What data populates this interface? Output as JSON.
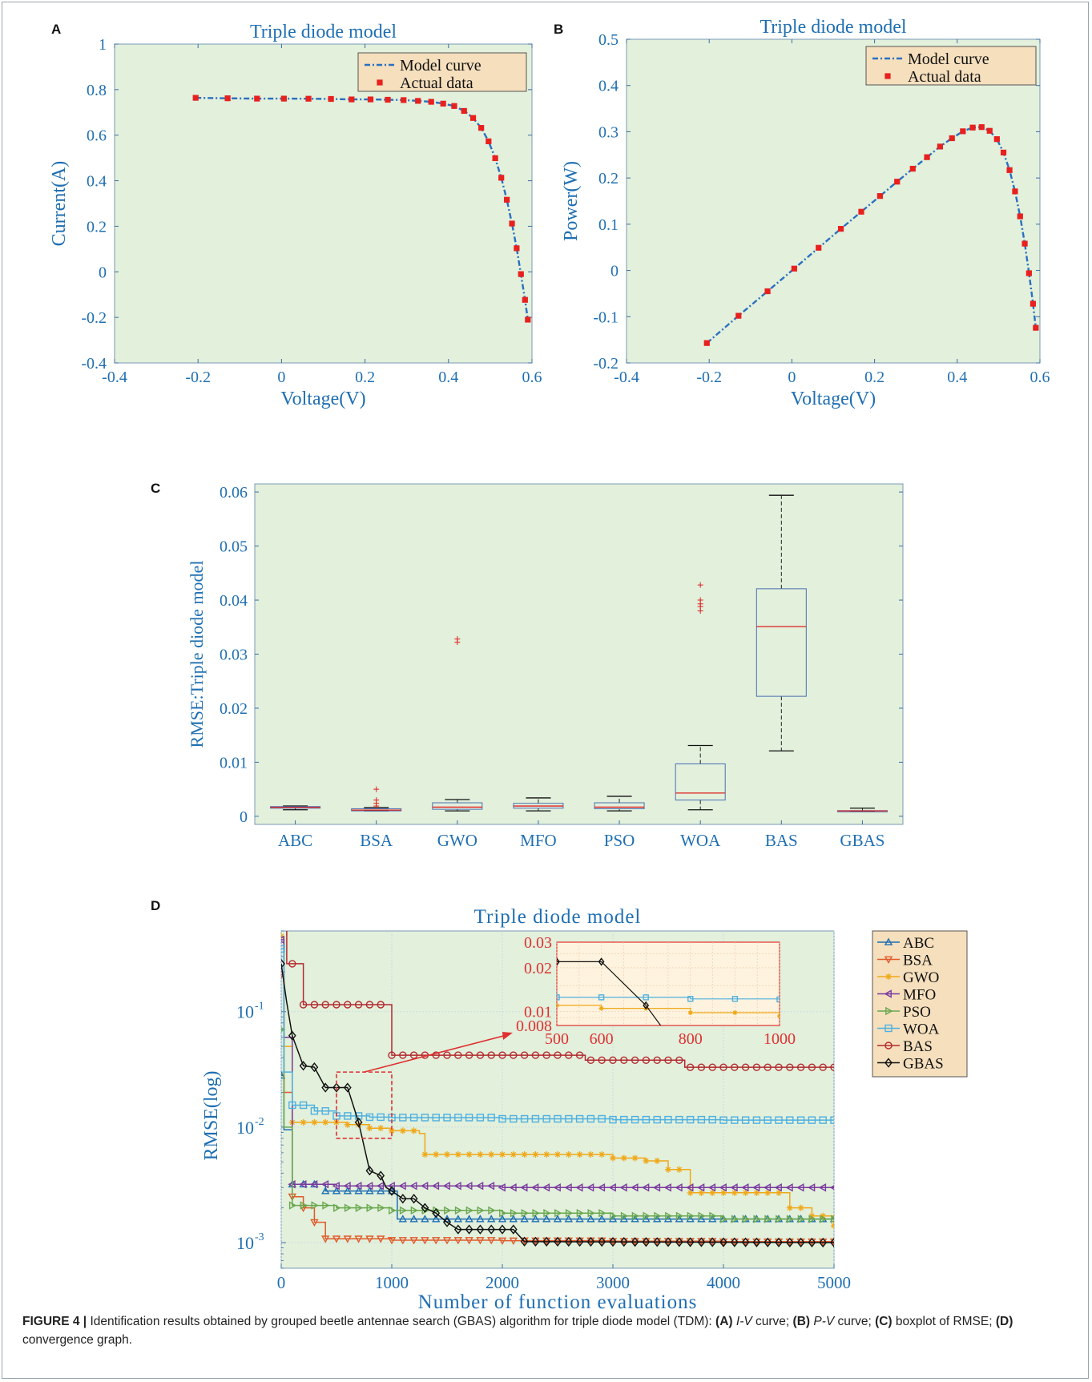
{
  "caption": {
    "label": "FIGURE 4 |",
    "text_1": "Identification results obtained by grouped beetle antennae search (GBAS) algorithm for triple diode model (TDM):",
    "a": "(A)",
    "a_text": "I-V",
    "a_rest": "curve;",
    "b": "(B)",
    "b_text": "P-V",
    "b_rest": "curve;",
    "c": "(C)",
    "c_text": "boxplot of RMSE;",
    "d": "(D)",
    "d_text": "convergence graph."
  },
  "colors": {
    "plot_bg": "#e2f0dc",
    "axis_text": "#1f6fb2",
    "model_line": "#2a6fc0",
    "actual_marker": "#e8201e",
    "legend_bg": "#f5dfbd",
    "inset_bg": "#fdf3de",
    "inset_border": "#e03030"
  },
  "chart_data": [
    {
      "id": "A",
      "panel_label": "A",
      "type": "line",
      "title": "Triple diode model",
      "xlabel": "Voltage(V)",
      "ylabel": "Current(A)",
      "xlim": [
        -0.4,
        0.6
      ],
      "ylim": [
        -0.4,
        1
      ],
      "xticks": [
        -0.4,
        -0.2,
        0,
        0.2,
        0.4,
        0.6
      ],
      "xtick_labels": [
        "-0.4",
        "-0.2",
        "0",
        "0.2",
        "0.4",
        "0.6"
      ],
      "yticks": [
        -0.4,
        -0.2,
        0,
        0.2,
        0.4,
        0.6,
        0.8,
        1
      ],
      "ytick_labels": [
        "-0.4",
        "-0.2",
        "0",
        "0.2",
        "0.4",
        "0.6",
        "0.8",
        "1"
      ],
      "legend_position": "top-right",
      "legend": [
        "Model curve",
        "Actual data"
      ],
      "x": [
        -0.2057,
        -0.1291,
        -0.0588,
        0.0057,
        0.0646,
        0.1185,
        0.1678,
        0.2132,
        0.2545,
        0.2924,
        0.3269,
        0.3585,
        0.3873,
        0.4137,
        0.4373,
        0.459,
        0.4784,
        0.496,
        0.5119,
        0.5265,
        0.5398,
        0.5521,
        0.5633,
        0.5736,
        0.5833,
        0.59
      ],
      "y": [
        0.764,
        0.762,
        0.7605,
        0.7605,
        0.76,
        0.759,
        0.757,
        0.757,
        0.7555,
        0.754,
        0.7505,
        0.7465,
        0.7385,
        0.728,
        0.7065,
        0.6755,
        0.632,
        0.573,
        0.499,
        0.413,
        0.3165,
        0.212,
        0.1035,
        -0.01,
        -0.123,
        -0.21
      ]
    },
    {
      "id": "B",
      "panel_label": "B",
      "type": "line",
      "title": "Triple diode model",
      "xlabel": "Voltage(V)",
      "ylabel": "Power(W)",
      "xlim": [
        -0.4,
        0.6
      ],
      "ylim": [
        -0.2,
        0.5
      ],
      "xticks": [
        -0.4,
        -0.2,
        0,
        0.2,
        0.4,
        0.6
      ],
      "xtick_labels": [
        "-0.4",
        "-0.2",
        "0",
        "0.2",
        "0.4",
        "0.6"
      ],
      "yticks": [
        -0.2,
        -0.1,
        0,
        0.1,
        0.2,
        0.3,
        0.4,
        0.5
      ],
      "ytick_labels": [
        "-0.2",
        "-0.1",
        "0",
        "0.1",
        "0.2",
        "0.3",
        "0.4",
        "0.5"
      ],
      "legend_position": "top-right",
      "legend": [
        "Model curve",
        "Actual data"
      ],
      "x": [
        -0.2057,
        -0.1291,
        -0.0588,
        0.0057,
        0.0646,
        0.1185,
        0.1678,
        0.2132,
        0.2545,
        0.2924,
        0.3269,
        0.3585,
        0.3873,
        0.4137,
        0.4373,
        0.459,
        0.4784,
        0.496,
        0.5119,
        0.5265,
        0.5398,
        0.5521,
        0.5633,
        0.5736,
        0.5833,
        0.59
      ],
      "y": [
        -0.157,
        -0.098,
        -0.045,
        0.004,
        0.049,
        0.09,
        0.127,
        0.161,
        0.192,
        0.22,
        0.245,
        0.268,
        0.286,
        0.301,
        0.309,
        0.31,
        0.302,
        0.284,
        0.255,
        0.217,
        0.171,
        0.117,
        0.058,
        -0.006,
        -0.072,
        -0.124
      ]
    },
    {
      "id": "C",
      "panel_label": "C",
      "type": "box",
      "ylabel": "RMSE:Triple diode model",
      "ylim": [
        -0.0015,
        0.0615
      ],
      "yticks": [
        0,
        0.01,
        0.02,
        0.03,
        0.04,
        0.05,
        0.06
      ],
      "ytick_labels": [
        "0",
        "0.01",
        "0.02",
        "0.03",
        "0.04",
        "0.05",
        "0.06"
      ],
      "categories": [
        "ABC",
        "BSA",
        "GWO",
        "MFO",
        "PSO",
        "WOA",
        "BAS",
        "GBAS"
      ],
      "boxes": [
        {
          "name": "ABC",
          "whisker_low": 0.0012,
          "q1": 0.0015,
          "median": 0.00165,
          "q3": 0.0018,
          "whisker_high": 0.0019,
          "outliers": []
        },
        {
          "name": "BSA",
          "whisker_low": 0.001,
          "q1": 0.001,
          "median": 0.00115,
          "q3": 0.0014,
          "whisker_high": 0.0016,
          "outliers": [
            0.0019,
            0.0024,
            0.003,
            0.005
          ]
        },
        {
          "name": "GWO",
          "whisker_low": 0.001,
          "q1": 0.0013,
          "median": 0.0017,
          "q3": 0.0025,
          "whisker_high": 0.0031,
          "outliers": [
            0.0322,
            0.0328
          ]
        },
        {
          "name": "MFO",
          "whisker_low": 0.001,
          "q1": 0.0015,
          "median": 0.0019,
          "q3": 0.0024,
          "whisker_high": 0.0034,
          "outliers": []
        },
        {
          "name": "PSO",
          "whisker_low": 0.001,
          "q1": 0.0014,
          "median": 0.0017,
          "q3": 0.0025,
          "whisker_high": 0.0037,
          "outliers": []
        },
        {
          "name": "WOA",
          "whisker_low": 0.0012,
          "q1": 0.003,
          "median": 0.0043,
          "q3": 0.0097,
          "whisker_high": 0.0131,
          "outliers": [
            0.038,
            0.0388,
            0.0393,
            0.04,
            0.0428
          ]
        },
        {
          "name": "BAS",
          "whisker_low": 0.0121,
          "q1": 0.0222,
          "median": 0.0351,
          "q3": 0.0421,
          "whisker_high": 0.0594,
          "outliers": []
        },
        {
          "name": "GBAS",
          "whisker_low": 0.00095,
          "q1": 0.00098,
          "median": 0.001,
          "q3": 0.00105,
          "whisker_high": 0.0015,
          "outliers": []
        }
      ]
    },
    {
      "id": "D",
      "panel_label": "D",
      "type": "line",
      "title": "Triple diode model",
      "xlabel": "Number of function evaluations",
      "ylabel": "RMSE(log)",
      "yscale": "log",
      "xlim": [
        0,
        5000
      ],
      "ylim": [
        0.0006,
        0.5
      ],
      "xticks": [
        0,
        1000,
        2000,
        3000,
        4000,
        5000
      ],
      "xtick_labels": [
        "0",
        "1000",
        "2000",
        "3000",
        "4000",
        "5000"
      ],
      "yticks": [
        0.001,
        0.01,
        0.1
      ],
      "ytick_labels": [
        {
          "base": "10",
          "exp": "-3"
        },
        {
          "base": "10",
          "exp": "-2"
        },
        {
          "base": "10",
          "exp": "-1"
        }
      ],
      "legend_position": "outside-right",
      "series": [
        {
          "name": "ABC",
          "color": "#1f6fb2",
          "marker": "triangle-up",
          "x": [
            0,
            25,
            100,
            400,
            1000,
            1050,
            5000
          ],
          "y": [
            0.028,
            0.0095,
            0.0032,
            0.0028,
            0.0028,
            0.0016,
            0.0016
          ]
        },
        {
          "name": "BSA",
          "color": "#e05a2a",
          "marker": "triangle-down",
          "x": [
            0,
            25,
            100,
            200,
            300,
            400,
            1000,
            2000,
            3000,
            4000,
            5000
          ],
          "y": [
            0.21,
            0.02,
            0.0025,
            0.002,
            0.0015,
            0.00108,
            0.00105,
            0.00104,
            0.00103,
            0.00102,
            0.00102
          ]
        },
        {
          "name": "GWO",
          "color": "#f0a818",
          "marker": "asterisk",
          "x": [
            0,
            25,
            100,
            500,
            600,
            800,
            1000,
            1250,
            1300,
            2900,
            3000,
            3300,
            3500,
            3650,
            3700,
            4500,
            4600,
            4800,
            5000
          ],
          "y": [
            0.45,
            0.05,
            0.011,
            0.011,
            0.0105,
            0.0098,
            0.0093,
            0.0088,
            0.0058,
            0.0058,
            0.0054,
            0.0051,
            0.0043,
            0.0043,
            0.0027,
            0.0027,
            0.002,
            0.0017,
            0.0014
          ]
        },
        {
          "name": "MFO",
          "color": "#7b3a9e",
          "marker": "triangle-left",
          "x": [
            0,
            25,
            100,
            500,
            1000,
            2000,
            3000,
            4000,
            5000
          ],
          "y": [
            0.42,
            0.06,
            0.0032,
            0.0031,
            0.0031,
            0.003,
            0.003,
            0.003,
            0.003
          ]
        },
        {
          "name": "PSO",
          "color": "#6aa84f",
          "marker": "triangle-right",
          "x": [
            0,
            25,
            100,
            500,
            1000,
            2000,
            3000,
            4000,
            5000
          ],
          "y": [
            0.07,
            0.01,
            0.0021,
            0.002,
            0.0019,
            0.0018,
            0.0017,
            0.0016,
            0.0016
          ]
        },
        {
          "name": "WOA",
          "color": "#4fb0e0",
          "marker": "square",
          "x": [
            0,
            25,
            100,
            300,
            500,
            800,
            1000,
            2000,
            3000,
            4000,
            5000
          ],
          "y": [
            0.35,
            0.03,
            0.0155,
            0.0138,
            0.0125,
            0.0122,
            0.0121,
            0.0118,
            0.0116,
            0.0115,
            0.0115
          ]
        },
        {
          "name": "BAS",
          "color": "#b3292e",
          "marker": "circle",
          "x": [
            0,
            50,
            200,
            950,
            1000,
            2700,
            2750,
            3600,
            3650,
            5000
          ],
          "y": [
            0.7,
            0.26,
            0.115,
            0.115,
            0.042,
            0.042,
            0.038,
            0.038,
            0.033,
            0.033
          ]
        },
        {
          "name": "GBAS",
          "color": "#111111",
          "marker": "diamond",
          "x": [
            0,
            50,
            100,
            200,
            300,
            400,
            500,
            600,
            700,
            800,
            900,
            950,
            1000,
            1100,
            1200,
            1300,
            1400,
            1500,
            1600,
            2100,
            2200,
            5000
          ],
          "y": [
            0.26,
            0.12,
            0.062,
            0.034,
            0.033,
            0.022,
            0.022,
            0.022,
            0.011,
            0.0042,
            0.0038,
            0.003,
            0.0028,
            0.0024,
            0.0024,
            0.002,
            0.0018,
            0.0015,
            0.0013,
            0.0013,
            0.00102,
            0.001
          ]
        }
      ],
      "inset": {
        "xlim": [
          500,
          1000
        ],
        "ylim": [
          0.008,
          0.03
        ],
        "xticks": [
          500,
          600,
          800,
          1000
        ],
        "xtick_labels": [
          "500",
          "600",
          "800",
          "1000"
        ],
        "yticks": [
          0.008,
          0.01,
          0.02,
          0.03
        ],
        "ytick_labels": [
          "0.008",
          "0.01",
          "0.02",
          "0.03"
        ]
      }
    }
  ]
}
